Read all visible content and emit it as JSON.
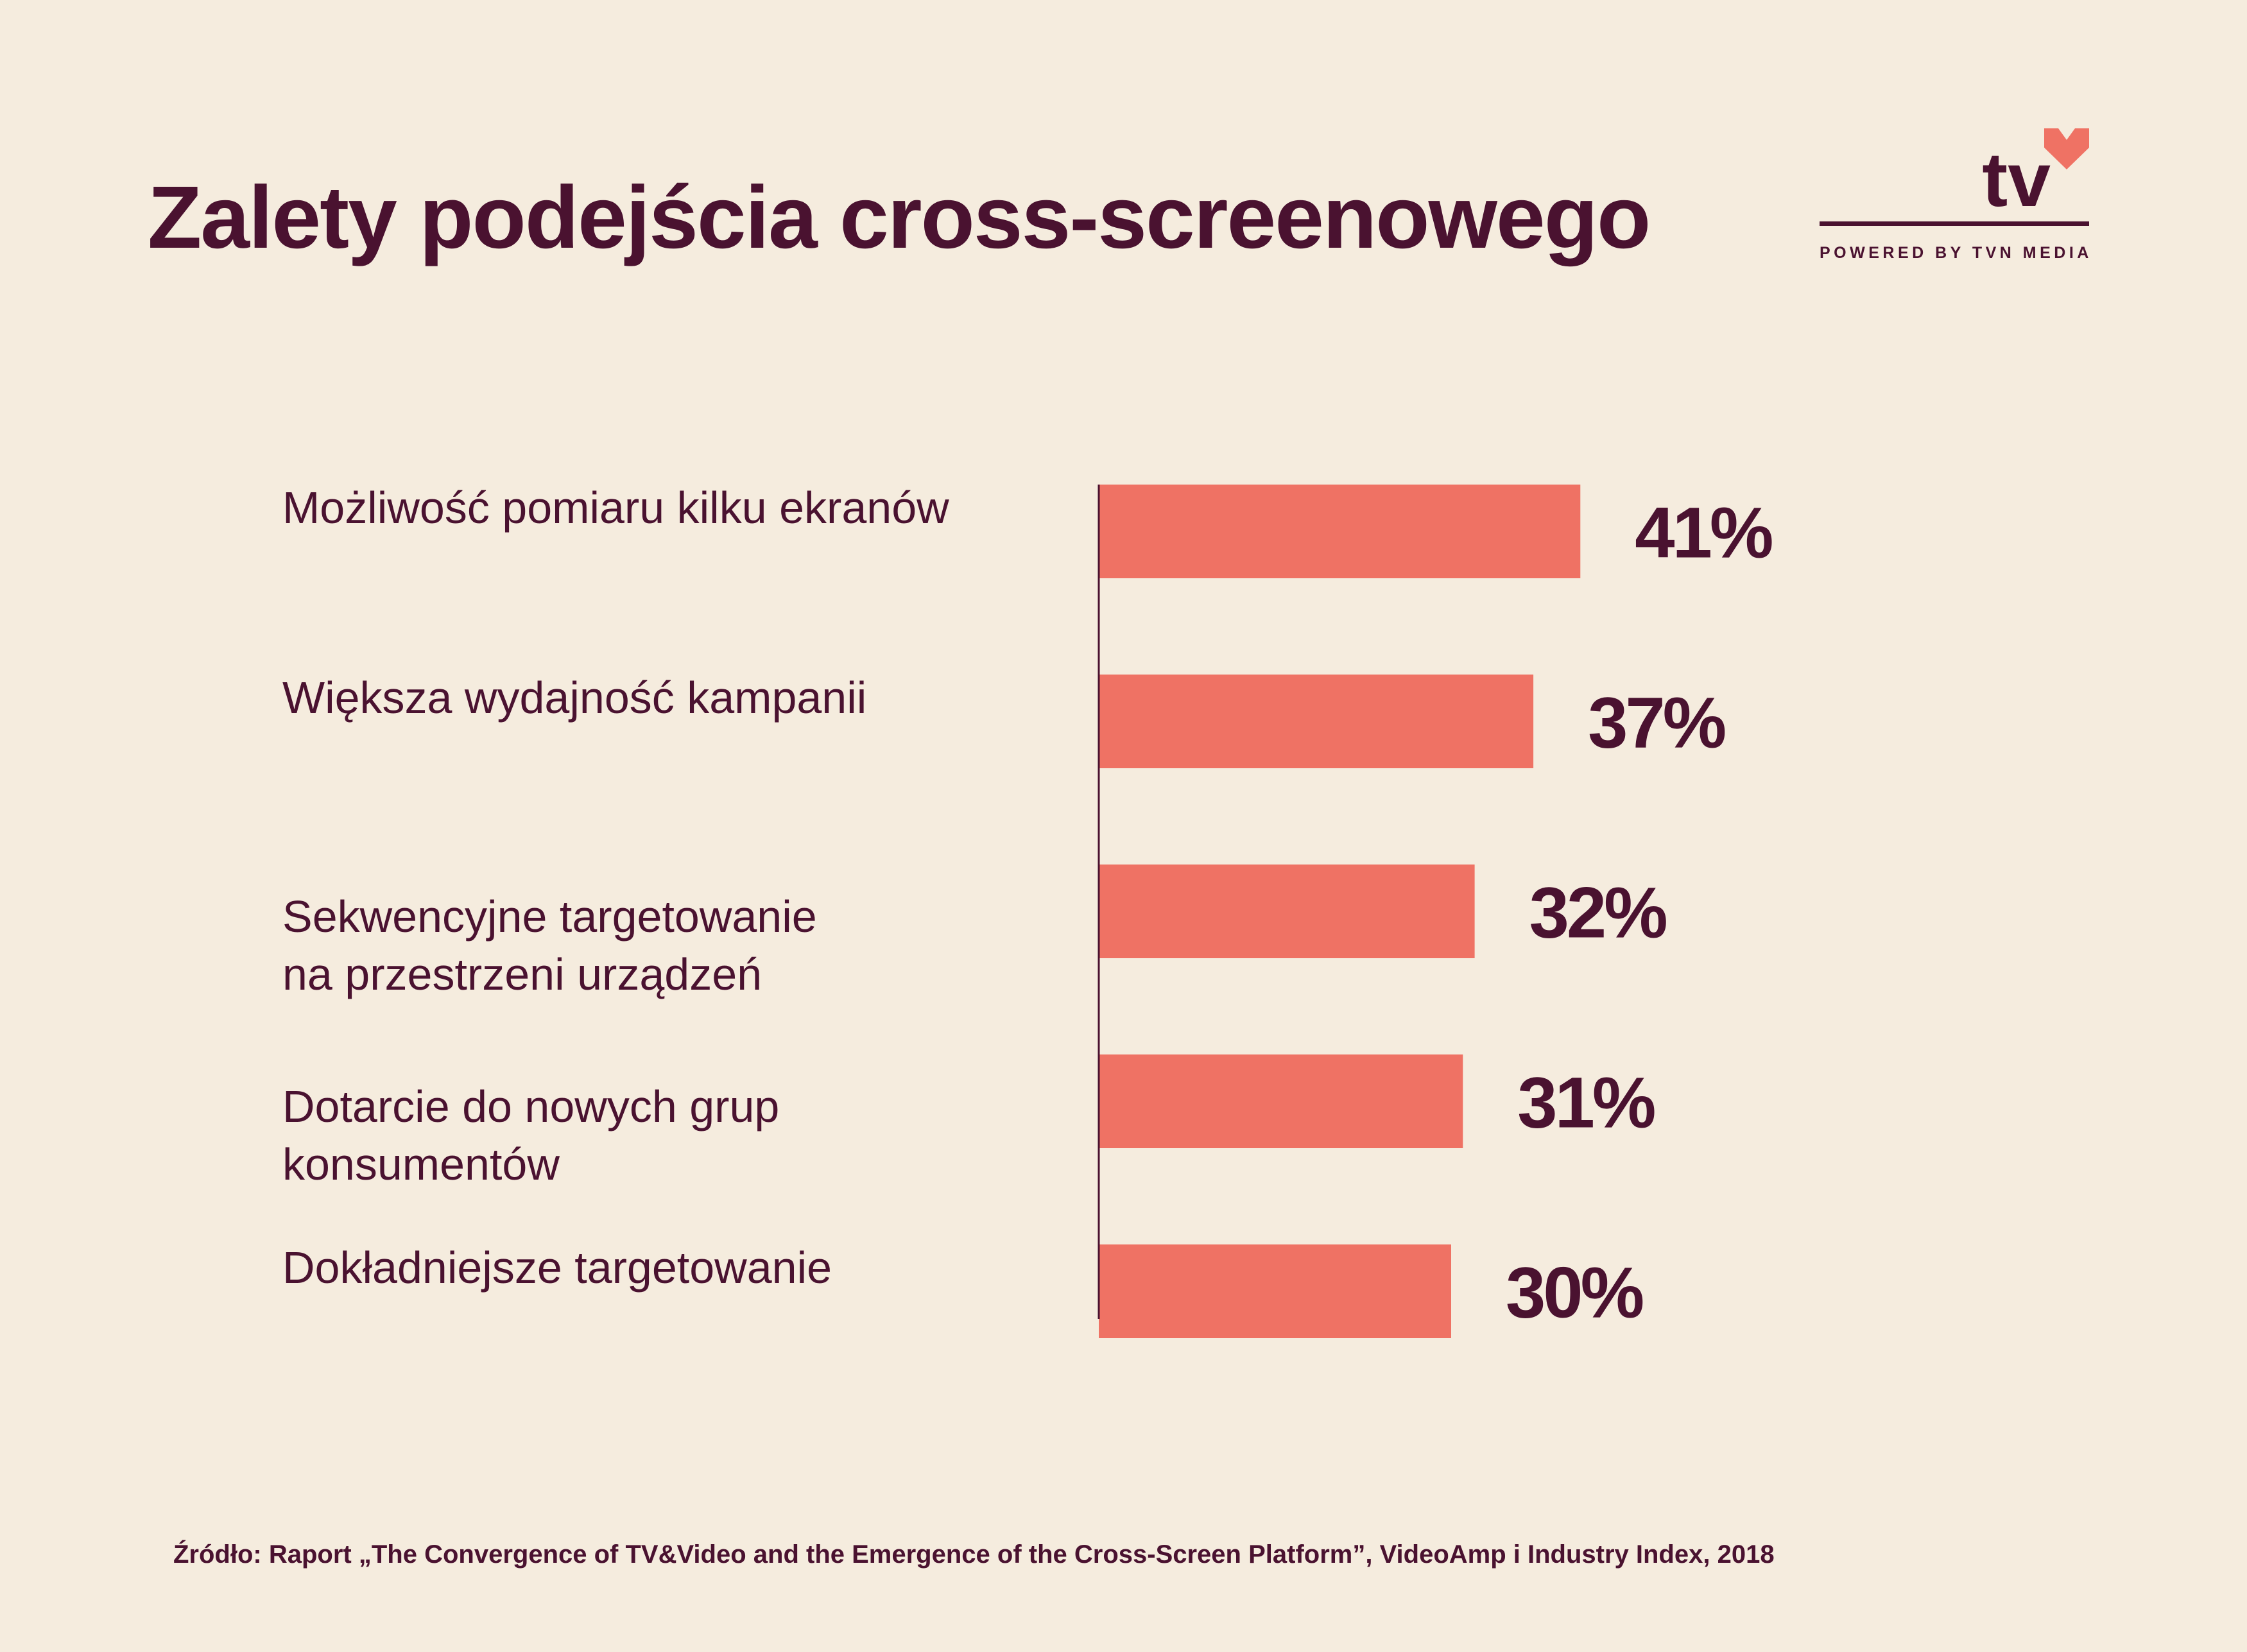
{
  "header": {
    "title": "Zalety podejścia cross-screenowego"
  },
  "logo": {
    "text": "tv",
    "tagline": "POWERED BY TVN MEDIA",
    "icon": "heart-icon",
    "heart_color": "#ef7264"
  },
  "footer": {
    "source": "Źródło: Raport „The Convergence of TV&Video and the Emergence of the Cross-Screen Platform”, VideoAmp i Industry Index, 2018"
  },
  "colors": {
    "bar": "#ef7264",
    "text": "#4a1230",
    "background": "#f5ecde"
  },
  "chart_data": {
    "type": "bar",
    "orientation": "horizontal",
    "categories": [
      "Możliwość pomiaru kilku ekranów",
      "Większa wydajność kampanii",
      "Sekwencyjne targetowanie na przestrzeni urządzeń",
      "Dotarcie do nowych grup konsumentów",
      "Dokładniejsze targetowanie"
    ],
    "category_lines": [
      [
        "Możliwość pomiaru kilku ekranów"
      ],
      [
        "Większa wydajność kampanii"
      ],
      [
        "Sekwencyjne targetowanie",
        "na przestrzeni urządzeń"
      ],
      [
        "Dotarcie do nowych grup",
        "konsumentów"
      ],
      [
        "Dokładniejsze targetowanie"
      ]
    ],
    "values": [
      41,
      37,
      32,
      31,
      30
    ],
    "value_labels": [
      "41%",
      "37%",
      "32%",
      "31%",
      "30%"
    ],
    "unit": "%",
    "xlim": [
      0,
      100
    ],
    "grid": false,
    "legend": "none"
  }
}
